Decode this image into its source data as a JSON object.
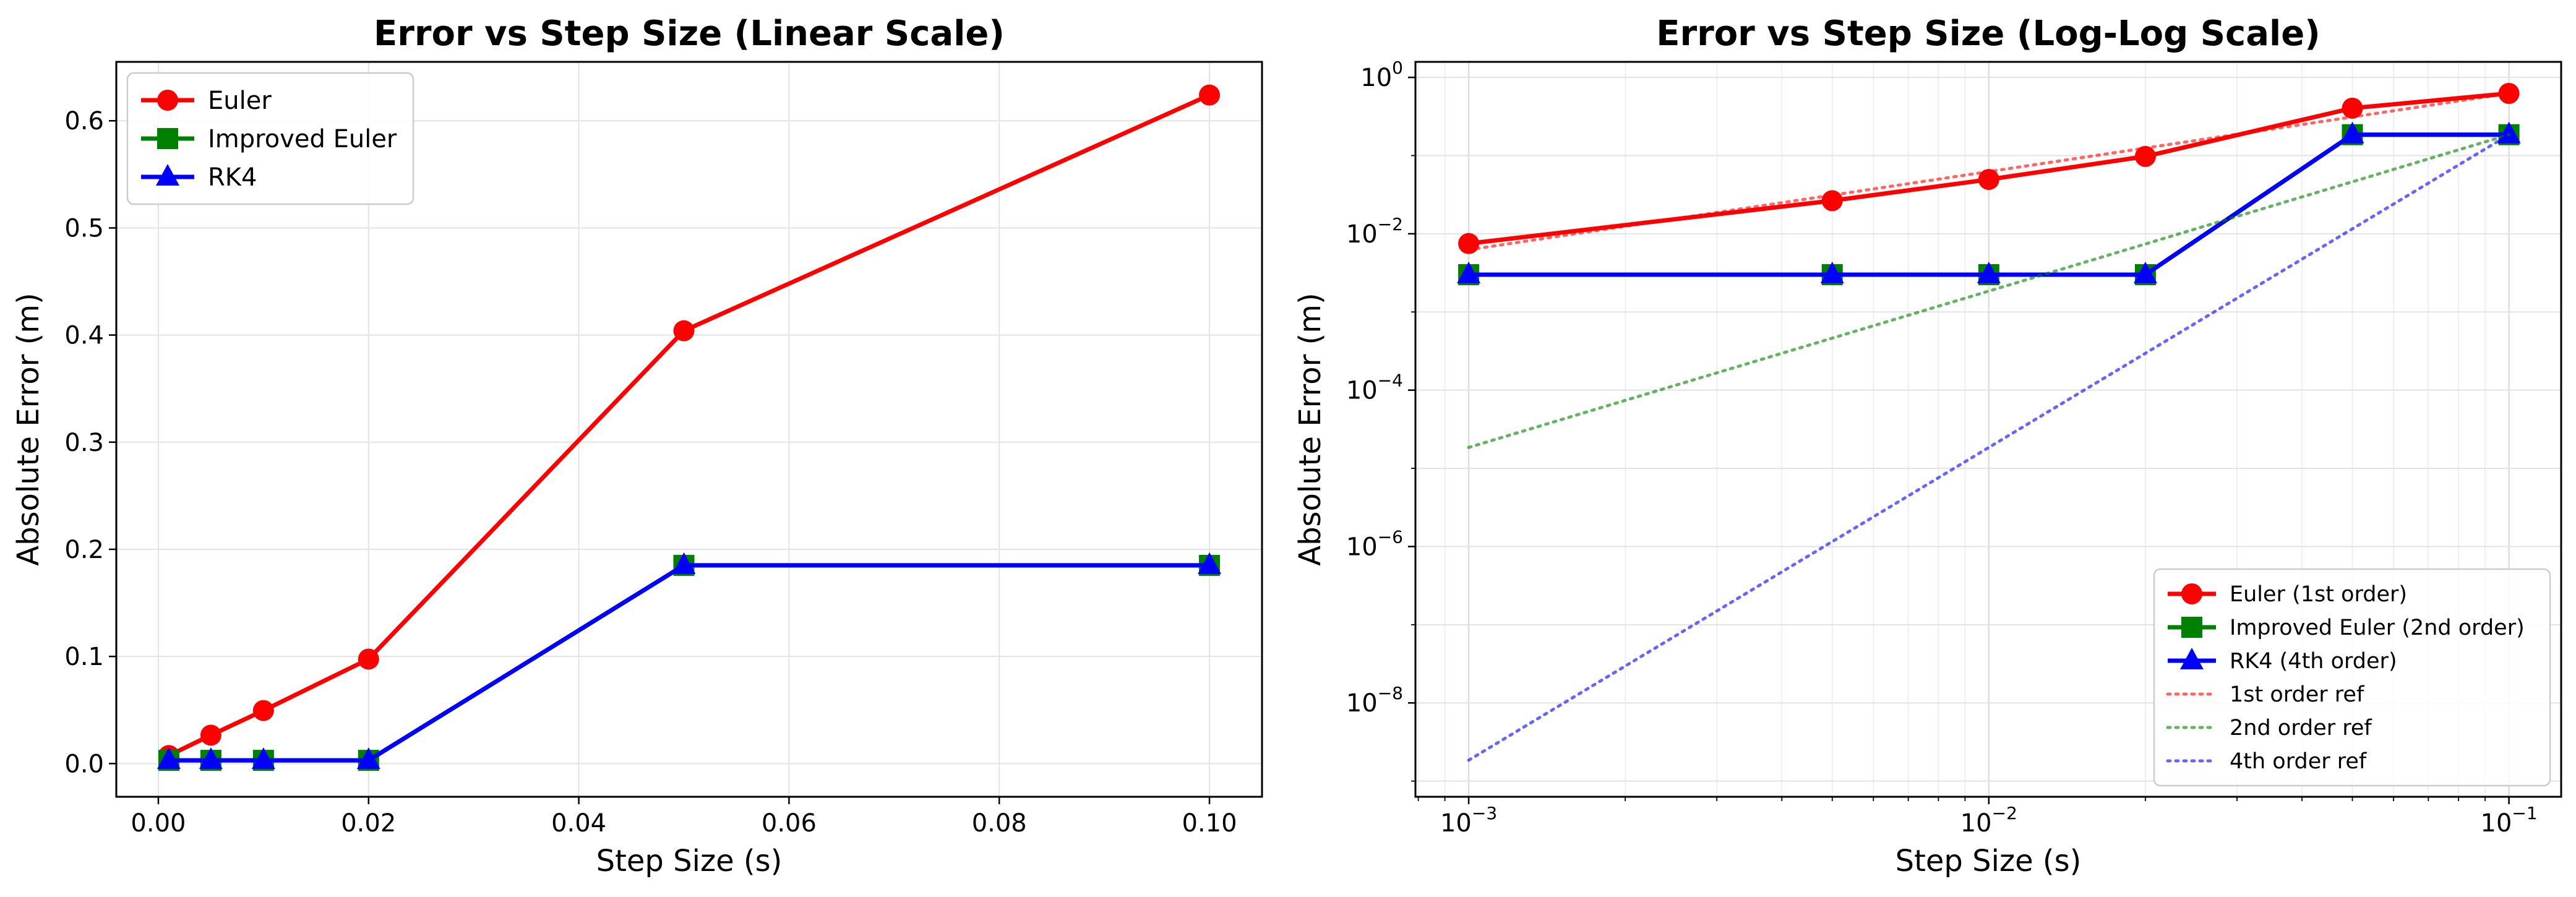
{
  "chart_data": [
    {
      "type": "line",
      "title": "Error vs Step Size (Linear Scale)",
      "xlabel": "Step Size (s)",
      "ylabel": "Absolute Error (m)",
      "xlim": [
        -0.004,
        0.105
      ],
      "ylim": [
        -0.031,
        0.655
      ],
      "xscale": "linear",
      "yscale": "linear",
      "grid": true,
      "legend_position": "top-left",
      "xticks": [
        0.0,
        0.02,
        0.04,
        0.06,
        0.08,
        0.1
      ],
      "xtick_labels": [
        "0.00",
        "0.02",
        "0.04",
        "0.06",
        "0.08",
        "0.10"
      ],
      "yticks": [
        0.0,
        0.1,
        0.2,
        0.3,
        0.4,
        0.5,
        0.6
      ],
      "ytick_labels": [
        "0.0",
        "0.1",
        "0.2",
        "0.3",
        "0.4",
        "0.5",
        "0.6"
      ],
      "x": [
        0.001,
        0.005,
        0.01,
        0.02,
        0.05,
        0.1
      ],
      "series": [
        {
          "name": "Euler",
          "color": "#ff0000",
          "marker": "circle",
          "values": [
            0.0075,
            0.0265,
            0.0495,
            0.0975,
            0.404,
            0.624
          ]
        },
        {
          "name": "Improved Euler",
          "color": "#008000",
          "marker": "square",
          "values": [
            0.003,
            0.003,
            0.003,
            0.003,
            0.185,
            0.185
          ]
        },
        {
          "name": "RK4",
          "color": "#0000ff",
          "marker": "triangle",
          "values": [
            0.003,
            0.003,
            0.003,
            0.003,
            0.185,
            0.185
          ]
        }
      ]
    },
    {
      "type": "line",
      "title": "Error vs Step Size (Log-Log Scale)",
      "xlabel": "Step Size (s)",
      "ylabel": "Absolute Error (m)",
      "xlim": [
        0.00079,
        0.126
      ],
      "ylim": [
        6.3e-10,
        1.58
      ],
      "xscale": "log",
      "yscale": "log",
      "grid": true,
      "legend_position": "bottom-right",
      "xticks": [
        0.001,
        0.01,
        0.1
      ],
      "xtick_labels": [
        {
          "base": "10",
          "exp": "−3"
        },
        {
          "base": "10",
          "exp": "−2"
        },
        {
          "base": "10",
          "exp": "−1"
        }
      ],
      "yticks": [
        1e-08,
        1e-06,
        0.0001,
        0.01,
        1
      ],
      "ytick_labels": [
        {
          "base": "10",
          "exp": "−8"
        },
        {
          "base": "10",
          "exp": "−6"
        },
        {
          "base": "10",
          "exp": "−4"
        },
        {
          "base": "10",
          "exp": "−2"
        },
        {
          "base": "10",
          "exp": "0"
        }
      ],
      "x": [
        0.001,
        0.005,
        0.01,
        0.02,
        0.05,
        0.1
      ],
      "series": [
        {
          "name": "Euler (1st order)",
          "color": "#ff0000",
          "marker": "circle",
          "style": "solid",
          "values": [
            0.0075,
            0.0265,
            0.0495,
            0.0975,
            0.404,
            0.624
          ]
        },
        {
          "name": "Improved Euler (2nd order)",
          "color": "#008000",
          "marker": "square",
          "style": "solid",
          "values": [
            0.003,
            0.003,
            0.003,
            0.003,
            0.185,
            0.185
          ]
        },
        {
          "name": "RK4 (4th order)",
          "color": "#0000ff",
          "marker": "triangle",
          "style": "solid",
          "values": [
            0.003,
            0.003,
            0.003,
            0.003,
            0.185,
            0.185
          ]
        },
        {
          "name": "1st order ref",
          "color": "#ff0000",
          "marker": "none",
          "style": "dotted",
          "x": [
            0.001,
            0.1
          ],
          "values": [
            0.00624,
            0.624
          ]
        },
        {
          "name": "2nd order ref",
          "color": "#008000",
          "marker": "none",
          "style": "dotted",
          "x": [
            0.001,
            0.1
          ],
          "values": [
            1.85e-05,
            0.185
          ]
        },
        {
          "name": "4th order ref",
          "color": "#0000ff",
          "marker": "none",
          "style": "dotted",
          "x": [
            0.001,
            0.1
          ],
          "values": [
            1.85e-09,
            0.185
          ]
        }
      ]
    }
  ]
}
